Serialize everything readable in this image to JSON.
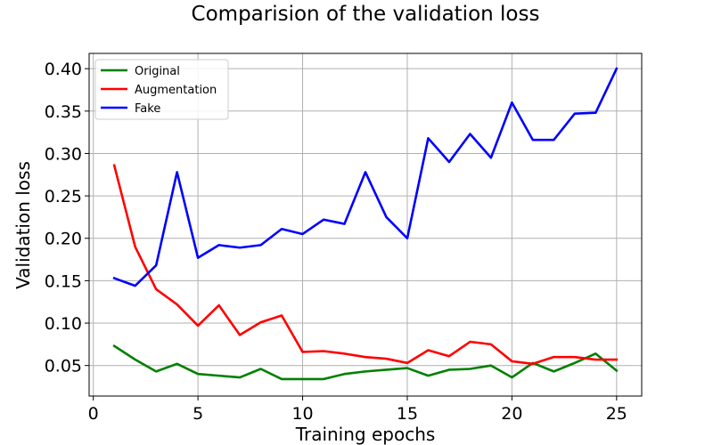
{
  "chart_data": {
    "type": "line",
    "title": "Comparision of the validation loss",
    "xlabel": "Training epochs",
    "ylabel": "Validation loss",
    "xlim": [
      -0.2,
      26.2
    ],
    "ylim": [
      0.014,
      0.418
    ],
    "x_ticks": [
      0,
      5,
      10,
      15,
      20,
      25
    ],
    "y_ticks": [
      0.05,
      0.1,
      0.15,
      0.2,
      0.25,
      0.3,
      0.35,
      0.4
    ],
    "y_tick_labels": [
      "0.05",
      "0.10",
      "0.15",
      "0.20",
      "0.25",
      "0.30",
      "0.35",
      "0.40"
    ],
    "grid": true,
    "legend_position": "top-left",
    "x": [
      1,
      2,
      3,
      4,
      5,
      6,
      7,
      8,
      9,
      10,
      11,
      12,
      13,
      14,
      15,
      16,
      17,
      18,
      19,
      20,
      21,
      22,
      23,
      24,
      25
    ],
    "series": [
      {
        "name": "Original",
        "color": "#008000",
        "values": [
          0.073,
          0.057,
          0.043,
          0.052,
          0.04,
          0.038,
          0.036,
          0.046,
          0.034,
          0.034,
          0.034,
          0.04,
          0.043,
          0.045,
          0.047,
          0.038,
          0.045,
          0.046,
          0.05,
          0.036,
          0.053,
          0.043,
          0.053,
          0.064,
          0.044
        ]
      },
      {
        "name": "Augmentation",
        "color": "#ff0000",
        "values": [
          0.286,
          0.19,
          0.14,
          0.122,
          0.097,
          0.121,
          0.086,
          0.101,
          0.109,
          0.066,
          0.067,
          0.064,
          0.06,
          0.058,
          0.053,
          0.068,
          0.061,
          0.078,
          0.075,
          0.055,
          0.052,
          0.06,
          0.06,
          0.057,
          0.057
        ]
      },
      {
        "name": "Fake",
        "color": "#0000ff",
        "values": [
          0.153,
          0.144,
          0.168,
          0.278,
          0.177,
          0.192,
          0.189,
          0.192,
          0.211,
          0.205,
          0.222,
          0.217,
          0.278,
          0.225,
          0.2,
          0.318,
          0.29,
          0.323,
          0.295,
          0.36,
          0.316,
          0.316,
          0.347,
          0.348,
          0.4
        ]
      }
    ]
  }
}
